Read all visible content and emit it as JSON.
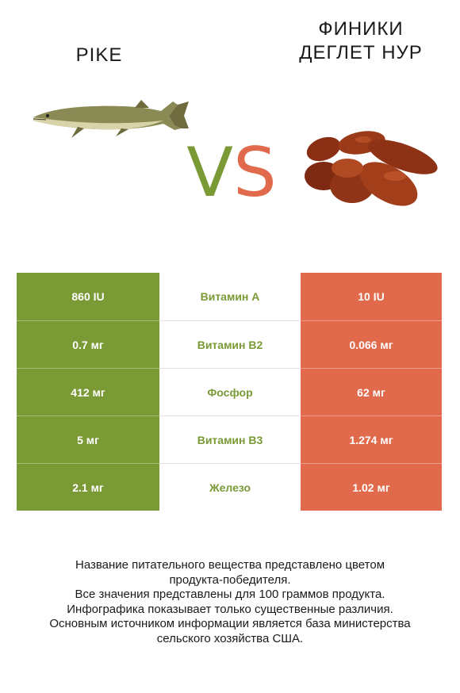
{
  "left": {
    "title": "PIKE"
  },
  "right": {
    "title_line1": "ФИНИКИ",
    "title_line2": "ДЕГЛЕТ НУР"
  },
  "vs": {
    "v": "V",
    "s": "S"
  },
  "colors": {
    "left": "#7a9a35",
    "right": "#e06a4b"
  },
  "rows": [
    {
      "left": "860 IU",
      "name": "Витамин A",
      "right": "10 IU"
    },
    {
      "left": "0.7 мг",
      "name": "Витамин B2",
      "right": "0.066 мг"
    },
    {
      "left": "412 мг",
      "name": "Фосфор",
      "right": "62 мг"
    },
    {
      "left": "5 мг",
      "name": "Витамин B3",
      "right": "1.274 мг"
    },
    {
      "left": "2.1 мг",
      "name": "Железо",
      "right": "1.02 мг"
    }
  ],
  "footer": {
    "line1": "Название питательного вещества представлено цветом",
    "line2": "продукта-победителя.",
    "line3": "Все значения представлены для 100 граммов продукта.",
    "line4": "Инфографика показывает только существенные различия.",
    "line5": "Основным источником информации является база министерства",
    "line6": "сельского хозяйства США."
  }
}
